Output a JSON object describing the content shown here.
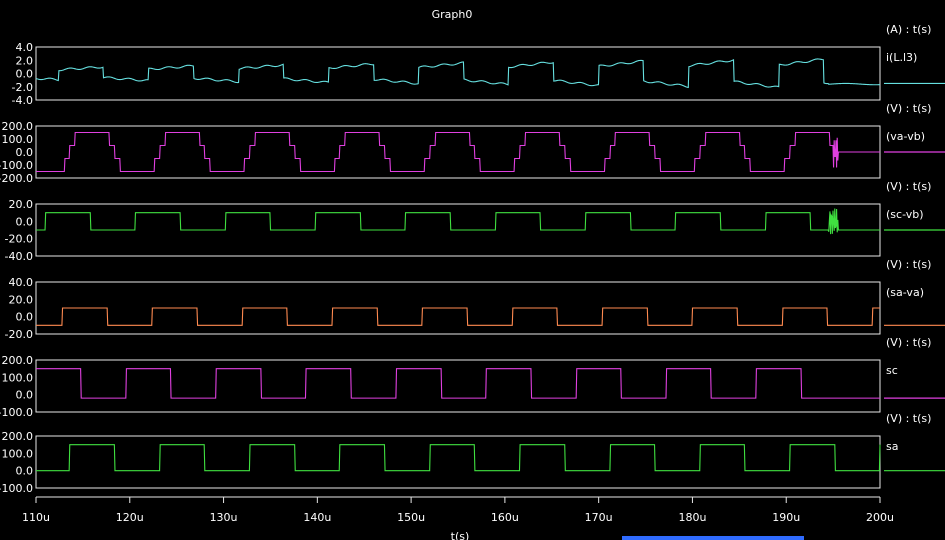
{
  "window": {
    "title": "Graph0"
  },
  "chart_data": {
    "type": "line",
    "title": "Graph0",
    "xlabel": "t(s)",
    "xlim": [
      110,
      200
    ],
    "x_unit": "u",
    "x_ticks": [
      "110u",
      "120u",
      "130u",
      "140u",
      "150u",
      "160u",
      "170u",
      "180u",
      "190u",
      "200u"
    ],
    "period_us": 9.6,
    "grid": false,
    "panels": [
      {
        "axis_label": "(A) : t(s)",
        "series": {
          "name": "i(L.l3)",
          "color": "#66e0e0"
        },
        "ylim": [
          -4.0,
          4.0
        ],
        "y_ticks": [
          "4.0",
          "2.0",
          "0.0",
          "-2.0",
          "-4.0"
        ],
        "amplitude_start": 0.9,
        "amplitude_end": 2.2,
        "final_value": -1.5
      },
      {
        "axis_label": "(V) : t(s)",
        "series": {
          "name": "(va-vb)",
          "color": "#e040e0"
        },
        "ylim": [
          -200.0,
          200.0
        ],
        "y_ticks": [
          "200.0",
          "100.0",
          "0.0",
          "-100.0",
          "-200.0"
        ],
        "levels": [
          150,
          50,
          0,
          -50,
          -150
        ],
        "final_value": 0
      },
      {
        "axis_label": "(V) : t(s)",
        "series": {
          "name": "(sc-vb)",
          "color": "#40e040"
        },
        "ylim": [
          -40.0,
          20.0
        ],
        "y_ticks": [
          "20.0",
          "0.0",
          "-20.0",
          "-40.0"
        ],
        "levels": [
          10,
          -10
        ],
        "final_value": -10
      },
      {
        "axis_label": "(V) : t(s)",
        "series": {
          "name": "(sa-va)",
          "color": "#ff8a50"
        },
        "ylim": [
          -20.0,
          40.0
        ],
        "y_ticks": [
          "40.0",
          "20.0",
          "0.0",
          "-20.0"
        ],
        "levels": [
          10,
          -10
        ],
        "final_value": -10
      },
      {
        "axis_label": "(V) : t(s)",
        "series": {
          "name": "sc",
          "color": "#e040e0"
        },
        "ylim": [
          -100.0,
          200.0
        ],
        "y_ticks": [
          "200.0",
          "100.0",
          "0.0",
          "-100.0"
        ],
        "levels": [
          150,
          -20
        ],
        "final_value": -20
      },
      {
        "axis_label": "(V) : t(s)",
        "series": {
          "name": "sa",
          "color": "#40e040"
        },
        "ylim": [
          -100.0,
          200.0
        ],
        "y_ticks": [
          "200.0",
          "100.0",
          "0.0",
          "-100.0"
        ],
        "levels": [
          150,
          0
        ],
        "final_value": 0
      }
    ]
  }
}
